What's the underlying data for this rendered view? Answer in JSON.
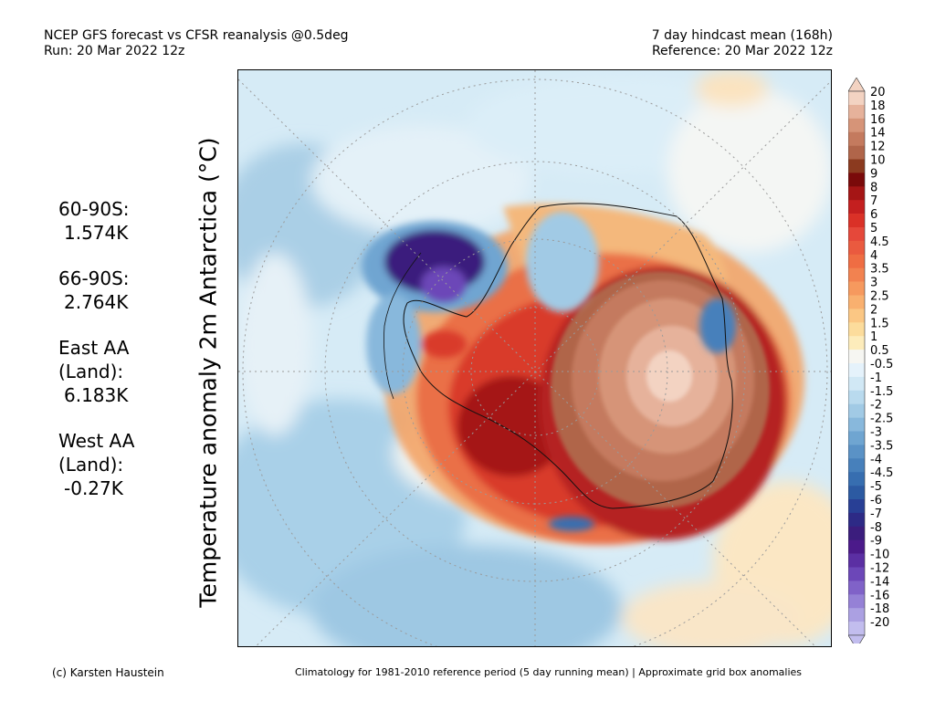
{
  "header": {
    "title_line1": "NCEP GFS forecast vs CFSR reanalysis @0.5deg",
    "title_line2": "Run: 20 Mar 2022 12z",
    "right_line1": "7 day hindcast mean (168h)",
    "right_line2": "Reference: 20 Mar 2022 12z"
  },
  "y_axis_label": "Temperature anomaly 2m Antarctica (°C)",
  "stats": [
    {
      "label": "60-90S:",
      "value": "1.574K"
    },
    {
      "label": "66-90S:",
      "value": "2.764K"
    },
    {
      "label": "East AA\n(Land):",
      "value": "6.183K"
    },
    {
      "label": "West AA\n(Land):",
      "value": "-0.27K"
    }
  ],
  "colorbar": {
    "labels": [
      "20",
      "18",
      "16",
      "14",
      "12",
      "10",
      "9",
      "8",
      "7",
      "6",
      "5",
      "4.5",
      "4",
      "3.5",
      "3",
      "2.5",
      "2",
      "1.5",
      "1",
      "0.5",
      "-0.5",
      "-1",
      "-1.5",
      "-2",
      "-2.5",
      "-3",
      "-3.5",
      "-4",
      "-4.5",
      "-5",
      "-6",
      "-7",
      "-8",
      "-9",
      "-10",
      "-12",
      "-14",
      "-16",
      "-18",
      "-20"
    ],
    "colors": [
      "#f3d3c2",
      "#e6b29b",
      "#d69478",
      "#c47a5e",
      "#b0654a",
      "#8b3a1f",
      "#7a0a0a",
      "#a51515",
      "#c41f1f",
      "#da3127",
      "#e5483a",
      "#ea5a3f",
      "#ef6d43",
      "#f28250",
      "#f6995e",
      "#f9b06f",
      "#fbc784",
      "#fcdc9c",
      "#fdecbb",
      "#f6f6f2",
      "#e5f2fb",
      "#d1e8f5",
      "#b9daee",
      "#a1cae5",
      "#88b8dc",
      "#6fa5d1",
      "#5a92c6",
      "#4780bb",
      "#376eb0",
      "#2c5aa2",
      "#283f95",
      "#2d2a86",
      "#3b1d7d",
      "#4b1a8a",
      "#5b2fa3",
      "#6c47b8",
      "#8062c8",
      "#9581d6",
      "#aba0e2",
      "#c2bdee"
    ]
  },
  "footer": {
    "left": "(c) Karsten Haustein",
    "right": "Climatology for 1981-2010 reference period (5 day running mean) | Approximate grid box anomalies"
  }
}
